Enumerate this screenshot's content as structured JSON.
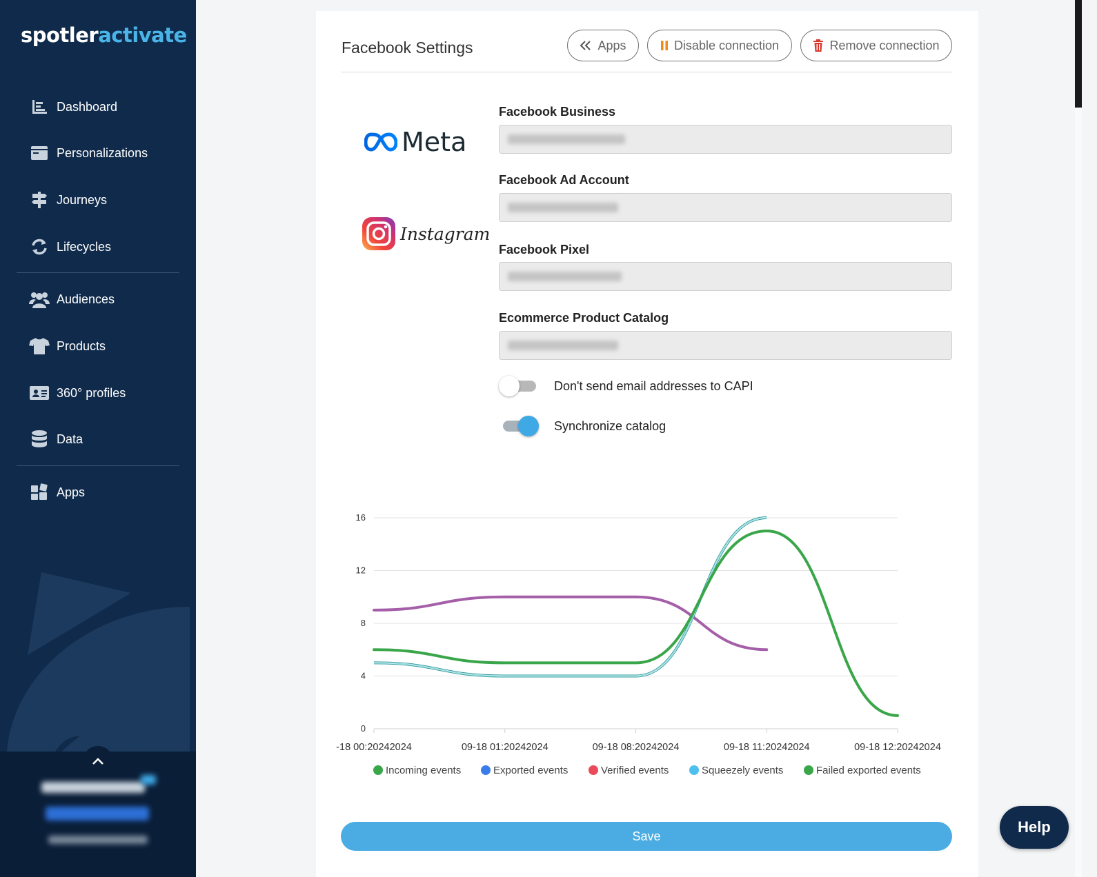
{
  "brand": {
    "part1": "spotler",
    "part2": "activate"
  },
  "sidebar": {
    "items": [
      {
        "label": "Dashboard"
      },
      {
        "label": "Personalizations"
      },
      {
        "label": "Journeys"
      },
      {
        "label": "Lifecycles"
      },
      {
        "label": "Audiences"
      },
      {
        "label": "Products"
      },
      {
        "label": "360° profiles"
      },
      {
        "label": "Data"
      },
      {
        "label": "Apps"
      }
    ]
  },
  "page": {
    "title": "Facebook Settings",
    "buttons": {
      "apps": "Apps",
      "disable": "Disable connection",
      "remove": "Remove connection"
    },
    "logos": {
      "meta": "Meta",
      "instagram": "Instagram"
    },
    "fields": [
      {
        "label": "Facebook Business"
      },
      {
        "label": "Facebook Ad Account"
      },
      {
        "label": "Facebook Pixel"
      },
      {
        "label": "Ecommerce Product Catalog"
      }
    ],
    "toggles": [
      {
        "label": "Don't send email addresses to CAPI",
        "on": false
      },
      {
        "label": "Synchronize catalog",
        "on": true
      }
    ],
    "save": "Save"
  },
  "help": "Help",
  "colors": {
    "sidebar": "#0f2a4a",
    "accent": "#4aace2",
    "purple": "#a45fa8",
    "green": "#3aa64a",
    "teal": "#5ccbd0"
  },
  "chart_data": {
    "type": "line",
    "categories": [
      "-18 00:20242024",
      "09-18 01:20242024",
      "09-18 08:20242024",
      "09-18 11:20242024",
      "09-18 12:20242024"
    ],
    "ylim": [
      0,
      16
    ],
    "yticks": [
      0,
      4,
      8,
      12,
      16
    ],
    "series": [
      {
        "color": "#a45fa8",
        "values": [
          9,
          10,
          10,
          6,
          null
        ]
      },
      {
        "color": "#5ccbd0",
        "values": [
          5,
          4,
          4,
          16,
          null
        ]
      },
      {
        "color": "#3aa64a",
        "values": [
          6,
          5,
          5,
          15,
          1
        ]
      }
    ],
    "legend": [
      {
        "label": "Incoming events",
        "color": "#3aa64a"
      },
      {
        "label": "Exported events",
        "color": "#3b7de8"
      },
      {
        "label": "Verified events",
        "color": "#ea4a5a"
      },
      {
        "label": "Squeezely events",
        "color": "#4ec0f0"
      },
      {
        "label": "Failed exported events",
        "color": "#3aa64a"
      }
    ]
  }
}
